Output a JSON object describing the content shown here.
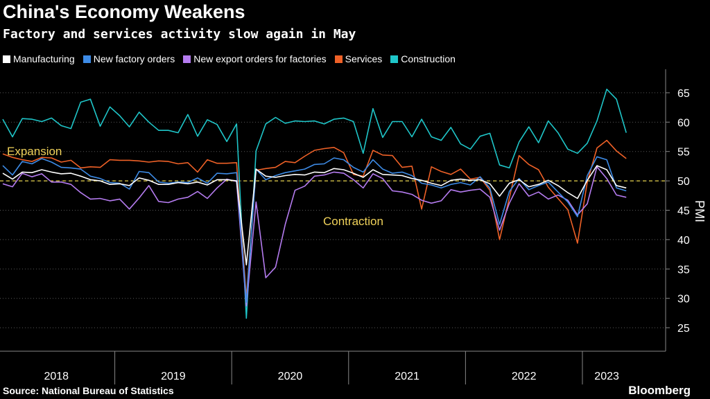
{
  "chart_data": {
    "type": "line",
    "title": "China's Economy Weakens",
    "subtitle": "Factory and services activity slow again in May",
    "ylabel": "PMI",
    "ylim": [
      21,
      69
    ],
    "yticks": [
      25,
      30,
      35,
      40,
      45,
      50,
      55,
      60,
      65
    ],
    "x_range": [
      "2018-01",
      "2023-05"
    ],
    "year_labels": [
      "2018",
      "2019",
      "2020",
      "2021",
      "2022",
      "2023"
    ],
    "reference_line": 50,
    "annotations": [
      "Expansion",
      "Contraction"
    ],
    "colors": {
      "Manufacturing": "#ffffff",
      "New factory orders": "#3d8be6",
      "New export orders for factories": "#b57cf0",
      "Services": "#ef6127",
      "Construction": "#1fc6c9",
      "reference": "#e8d44d",
      "annotation": "#f0d25a"
    },
    "series": [
      {
        "name": "Manufacturing",
        "values": [
          51.3,
          50.3,
          51.5,
          51.4,
          51.9,
          51.5,
          51.2,
          51.3,
          50.8,
          50.2,
          50.0,
          49.4,
          49.5,
          49.2,
          50.5,
          50.1,
          49.4,
          49.4,
          49.7,
          49.5,
          49.8,
          49.3,
          50.2,
          50.2,
          50.0,
          35.7,
          52.0,
          50.8,
          50.6,
          50.9,
          51.1,
          51.0,
          51.5,
          51.4,
          52.1,
          51.9,
          51.3,
          50.6,
          51.9,
          51.1,
          51.0,
          50.9,
          50.4,
          50.1,
          49.6,
          49.2,
          50.1,
          50.3,
          50.1,
          50.2,
          49.5,
          47.4,
          49.6,
          50.2,
          49.0,
          49.4,
          50.1,
          49.2,
          48.0,
          47.0,
          50.1,
          52.6,
          51.9,
          49.2,
          48.8
        ]
      },
      {
        "name": "New factory orders",
        "values": [
          52.6,
          51.0,
          53.3,
          52.9,
          53.8,
          53.2,
          52.3,
          52.2,
          52.0,
          50.8,
          50.4,
          49.7,
          49.6,
          48.6,
          51.6,
          51.4,
          49.8,
          49.6,
          49.8,
          49.7,
          50.5,
          49.6,
          51.3,
          51.2,
          51.4,
          29.3,
          52.0,
          50.2,
          50.9,
          51.4,
          51.7,
          52.0,
          52.8,
          52.9,
          53.9,
          53.6,
          52.3,
          51.5,
          53.6,
          52.0,
          51.3,
          51.5,
          50.9,
          49.6,
          49.3,
          48.8,
          49.4,
          49.7,
          49.3,
          50.7,
          48.8,
          42.6,
          48.2,
          50.4,
          48.5,
          49.2,
          49.8,
          48.1,
          46.4,
          43.9,
          50.9,
          54.1,
          53.6,
          48.8,
          48.3
        ]
      },
      {
        "name": "New export orders for factories",
        "values": [
          49.5,
          49.0,
          51.3,
          50.7,
          51.2,
          49.8,
          49.8,
          49.4,
          48.0,
          46.9,
          47.0,
          46.6,
          46.9,
          45.2,
          47.1,
          49.2,
          46.5,
          46.3,
          46.9,
          47.2,
          48.2,
          47.0,
          48.8,
          50.3,
          49.9,
          28.7,
          46.4,
          33.5,
          35.3,
          42.6,
          48.4,
          49.1,
          50.8,
          51.0,
          51.5,
          51.3,
          50.2,
          48.8,
          51.2,
          50.4,
          48.3,
          48.1,
          47.7,
          46.7,
          46.2,
          46.6,
          48.5,
          48.1,
          48.4,
          48.6,
          47.2,
          41.6,
          46.2,
          49.5,
          47.4,
          48.1,
          46.9,
          47.6,
          46.7,
          44.2,
          46.1,
          52.4,
          50.4,
          47.6,
          47.2
        ]
      },
      {
        "name": "Services",
        "values": [
          54.6,
          54.0,
          53.6,
          53.3,
          54.0,
          53.9,
          53.2,
          53.5,
          52.2,
          52.4,
          52.3,
          53.6,
          53.5,
          53.5,
          53.4,
          53.2,
          53.4,
          53.3,
          52.9,
          53.1,
          51.5,
          53.6,
          53.0,
          53.0,
          53.1,
          30.1,
          51.8,
          52.1,
          52.3,
          53.3,
          53.1,
          54.2,
          55.2,
          55.5,
          55.7,
          54.8,
          51.1,
          50.8,
          55.2,
          54.4,
          54.3,
          52.3,
          52.5,
          45.2,
          52.4,
          51.6,
          51.1,
          52.0,
          50.3,
          50.6,
          48.4,
          40.0,
          47.1,
          54.3,
          52.8,
          51.9,
          48.9,
          47.0,
          45.1,
          39.4,
          49.8,
          55.6,
          56.9,
          55.1,
          53.8
        ]
      },
      {
        "name": "Construction",
        "values": [
          60.5,
          57.5,
          60.6,
          60.5,
          60.1,
          60.7,
          59.4,
          58.9,
          63.4,
          63.9,
          59.3,
          62.6,
          61.1,
          59.2,
          61.7,
          60.0,
          58.6,
          58.6,
          58.2,
          61.3,
          57.6,
          60.4,
          59.6,
          56.7,
          59.7,
          26.6,
          55.1,
          59.7,
          60.8,
          59.8,
          60.2,
          60.1,
          60.2,
          59.7,
          60.5,
          60.7,
          60.1,
          54.7,
          62.3,
          57.4,
          60.1,
          60.1,
          57.5,
          60.5,
          57.5,
          56.9,
          59.1,
          56.3,
          55.4,
          57.6,
          58.1,
          52.7,
          52.2,
          56.6,
          59.2,
          56.5,
          60.2,
          58.2,
          55.4,
          54.7,
          56.4,
          60.2,
          65.6,
          63.9,
          58.2
        ]
      }
    ]
  },
  "footer": {
    "source": "Source: National Bureau of Statistics",
    "brand": "Bloomberg"
  }
}
